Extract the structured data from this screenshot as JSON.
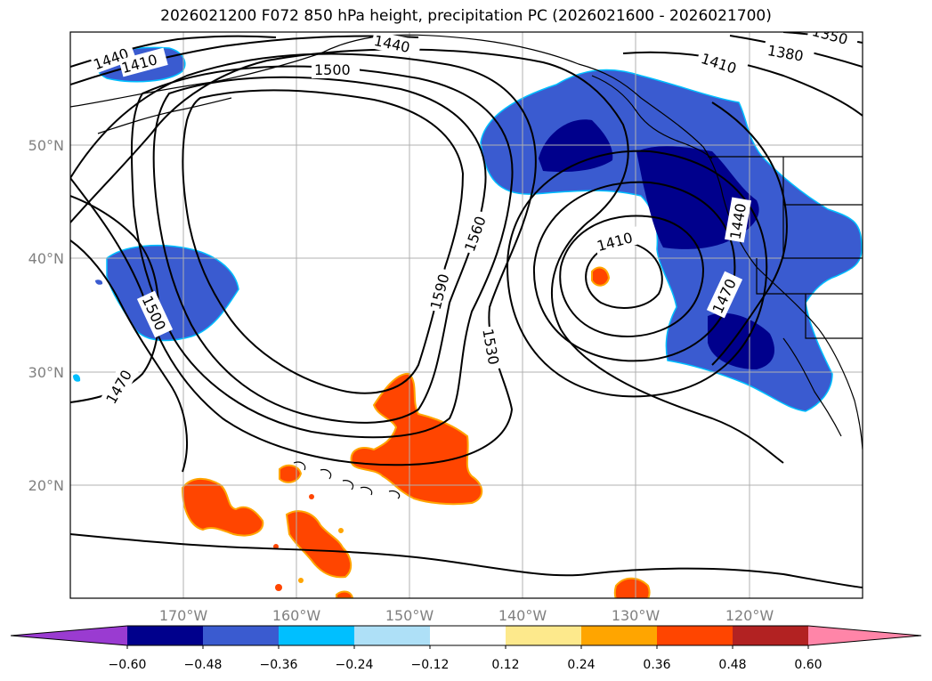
{
  "title": "2026021200 F072 850 hPa height, precipitation PC (2026021600 - 2026021700)",
  "axes": {
    "lon_labels": [
      "170°W",
      "160°W",
      "150°W",
      "140°W",
      "130°W",
      "120°W"
    ],
    "lat_labels": [
      "50°N",
      "40°N",
      "30°N",
      "20°N"
    ]
  },
  "contour_labels": [
    "1350",
    "1380",
    "1410",
    "1440",
    "1410",
    "1440",
    "1500",
    "1410",
    "1560",
    "1590",
    "1530",
    "1500",
    "1470",
    "1440",
    "1470"
  ],
  "colorbar": {
    "ticks": [
      "−0.60",
      "−0.48",
      "−0.36",
      "−0.24",
      "−0.12",
      "0.12",
      "0.24",
      "0.36",
      "0.48",
      "0.60"
    ],
    "colors": [
      "#9a3bd1",
      "#00008c",
      "#3a5bd0",
      "#00bfff",
      "#aee0f7",
      "#ffffff",
      "#fde98c",
      "#ffa500",
      "#ff4500",
      "#b22222",
      "#ff85a8"
    ]
  },
  "colors": {
    "neg_strong": "#00008c",
    "neg_mid": "#3a5bd0",
    "pos_mid": "#ff4500",
    "pos_edge": "#ffa500"
  }
}
